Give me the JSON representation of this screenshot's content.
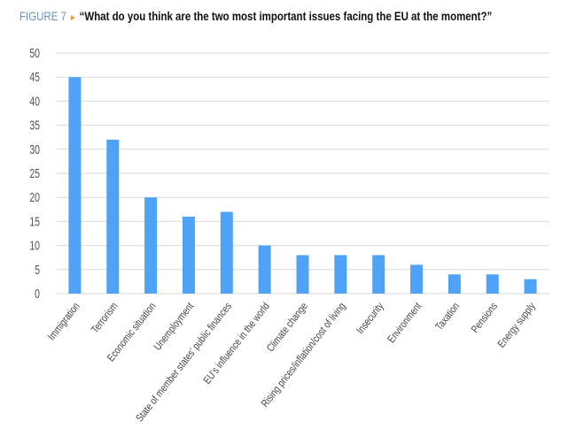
{
  "figure_label": "FIGURE 7",
  "title": "“What do you think are the two most important issues facing the EU at the moment?”",
  "colors": {
    "bar": "#4fa3f7",
    "figure_label": "#6a95c6",
    "arrow": "#e8a13a",
    "grid": "#d9d9d9"
  },
  "chart_data": {
    "type": "bar",
    "title": "“What do you think are the two most important issues facing the EU at the moment?”",
    "xlabel": "",
    "ylabel": "",
    "ylim": [
      0,
      50
    ],
    "yticks": [
      0,
      5,
      10,
      15,
      20,
      25,
      30,
      35,
      40,
      45,
      50
    ],
    "grid": true,
    "categories": [
      "Immigration",
      "Terrorism",
      "Economic situation",
      "Unemployment",
      "State of member states’ public finances",
      "EU’s influence in the world",
      "Climate change",
      "Rising prices/inflation/cost of living",
      "Insecurity",
      "Environment",
      "Taxation",
      "Pensions",
      "Energy supply"
    ],
    "values": [
      45,
      32,
      20,
      16,
      17,
      10,
      8,
      8,
      8,
      6,
      4,
      4,
      3
    ]
  }
}
